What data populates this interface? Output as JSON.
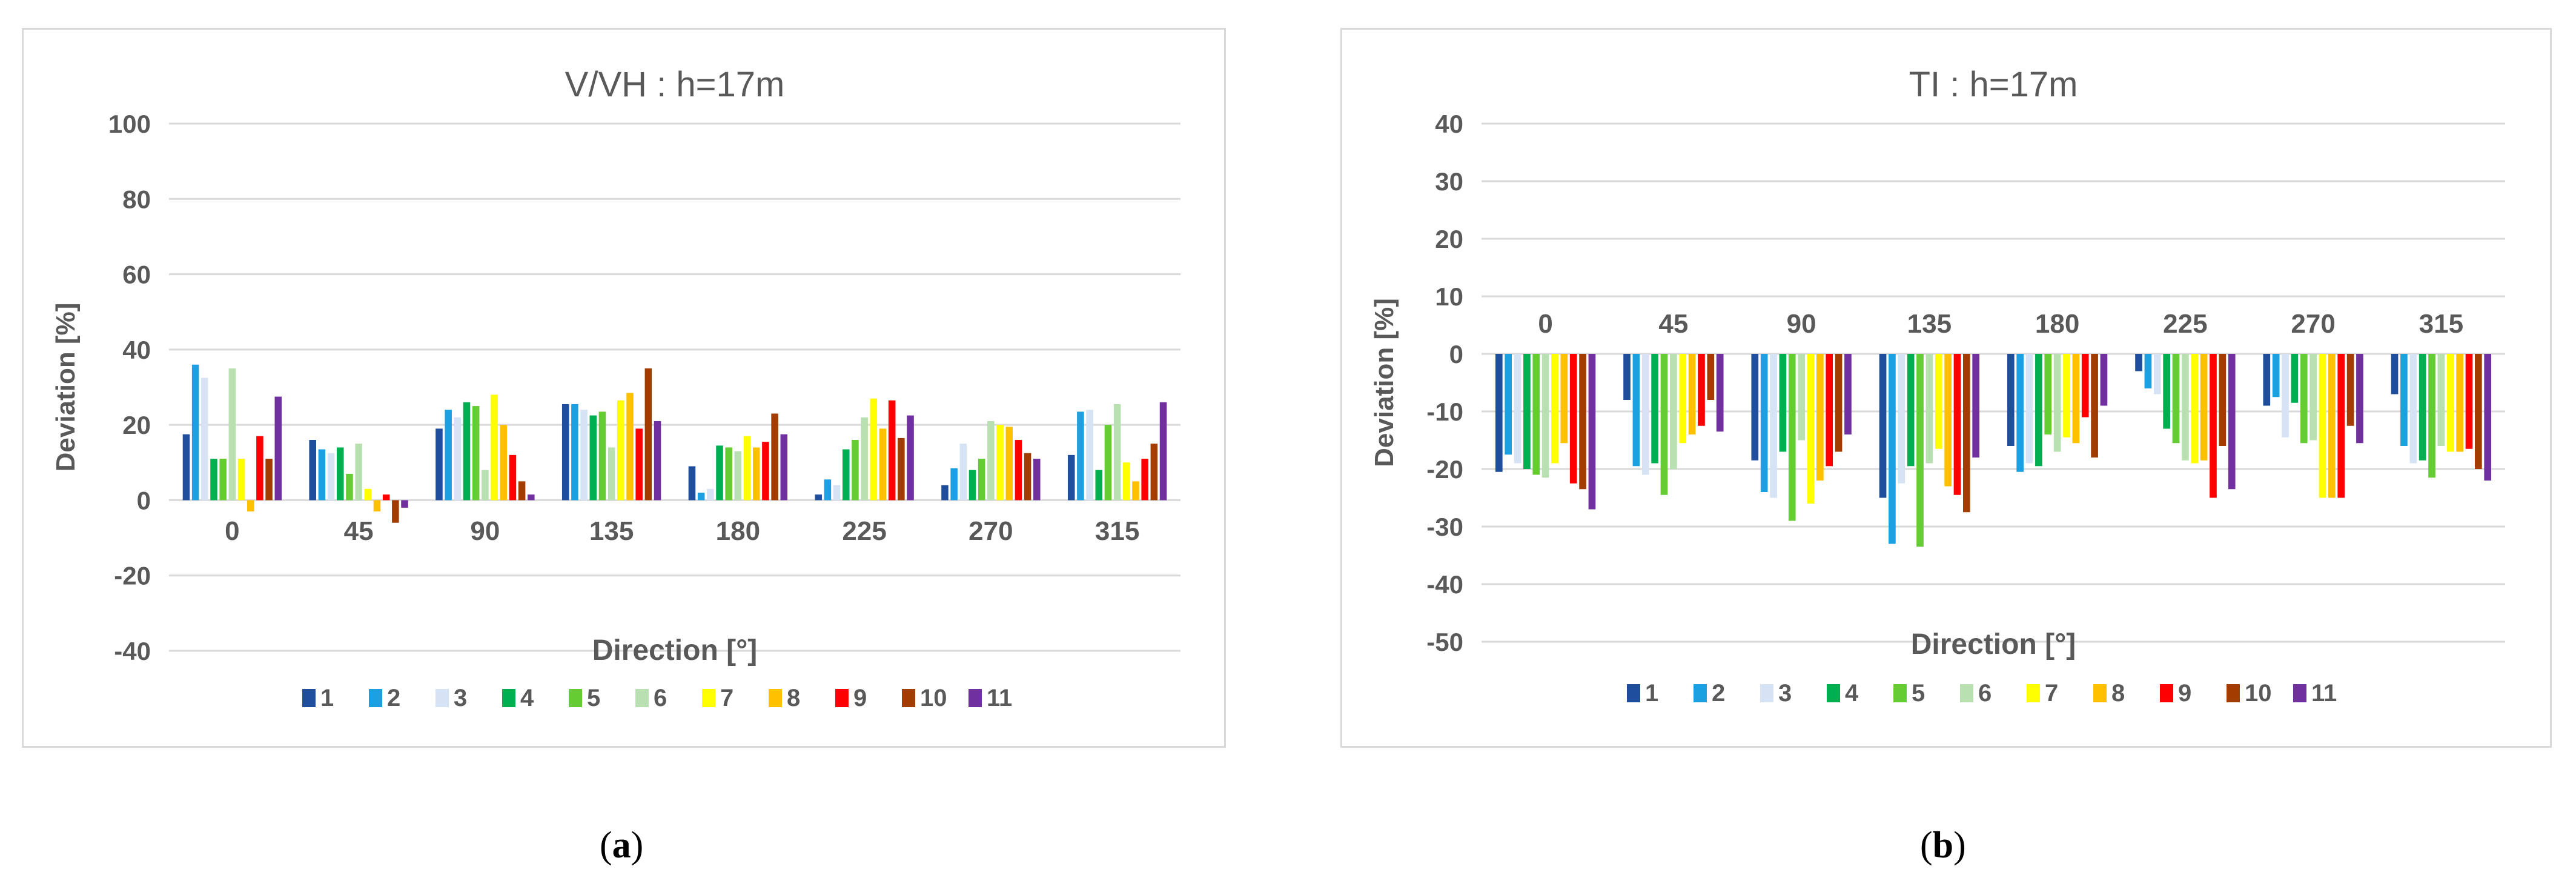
{
  "colors": [
    "#1f4e9c",
    "#1ba1e2",
    "#d6e3f5",
    "#00b050",
    "#66cc33",
    "#b8e0b0",
    "#ffff00",
    "#ffc000",
    "#ff0000",
    "#a23c00",
    "#7030a0"
  ],
  "captions": [
    {
      "open": "(",
      "letter": "a",
      "close": ")"
    },
    {
      "open": "(",
      "letter": "b",
      "close": ")"
    }
  ],
  "chart_data": [
    {
      "type": "bar",
      "title": "V/VH : h=17m",
      "xlabel": "Direction [°]",
      "ylabel": "Deviation [%]",
      "ylim": [
        -40,
        100
      ],
      "yticks": [
        -40,
        -20,
        0,
        20,
        40,
        60,
        80,
        100
      ],
      "categories": [
        "0",
        "45",
        "90",
        "135",
        "180",
        "225",
        "270",
        "315"
      ],
      "legend_position": "bottom",
      "grid": true,
      "series": [
        {
          "name": "1",
          "values": [
            17.5,
            16,
            19,
            25.5,
            9,
            1.5,
            4,
            12
          ]
        },
        {
          "name": "2",
          "values": [
            36,
            13.5,
            24,
            25.5,
            2,
            5.5,
            8.5,
            23.5
          ]
        },
        {
          "name": "3",
          "values": [
            32.5,
            12.5,
            22,
            24,
            3,
            4,
            15,
            24
          ]
        },
        {
          "name": "4",
          "values": [
            11,
            14,
            26,
            22.5,
            14.5,
            13.5,
            8,
            8
          ]
        },
        {
          "name": "5",
          "values": [
            11,
            7,
            25,
            23.5,
            14,
            16,
            11,
            20
          ]
        },
        {
          "name": "6",
          "values": [
            35,
            15,
            8,
            14,
            13,
            22,
            21,
            25.5
          ]
        },
        {
          "name": "7",
          "values": [
            11,
            3,
            28,
            26.5,
            17,
            27,
            20,
            10
          ]
        },
        {
          "name": "8",
          "values": [
            -3,
            -3,
            20,
            28.5,
            14,
            19,
            19.5,
            5
          ]
        },
        {
          "name": "9",
          "values": [
            17,
            1.5,
            12,
            19,
            15.5,
            26.5,
            16,
            11
          ]
        },
        {
          "name": "10",
          "values": [
            11,
            -6,
            5,
            35,
            23,
            16.5,
            12.5,
            15
          ]
        },
        {
          "name": "11",
          "values": [
            27.5,
            -2,
            1.5,
            21,
            17.5,
            22.5,
            11,
            26
          ]
        }
      ]
    },
    {
      "type": "bar",
      "title": "TI : h=17m",
      "xlabel": "Direction [°]",
      "ylabel": "Deviation [%]",
      "ylim": [
        -50,
        40
      ],
      "yticks": [
        -50,
        -40,
        -30,
        -20,
        -10,
        0,
        10,
        20,
        30,
        40
      ],
      "categories": [
        "0",
        "45",
        "90",
        "135",
        "180",
        "225",
        "270",
        "315"
      ],
      "legend_position": "bottom",
      "grid": true,
      "series": [
        {
          "name": "1",
          "values": [
            -20.5,
            -8,
            -18.5,
            -25,
            -16,
            -3,
            -9,
            -7
          ]
        },
        {
          "name": "2",
          "values": [
            -17.5,
            -19.5,
            -24,
            -33,
            -20.5,
            -6,
            -7.5,
            -16
          ]
        },
        {
          "name": "3",
          "values": [
            -19,
            -21,
            -25,
            -22.5,
            -19,
            -7,
            -14.5,
            -19
          ]
        },
        {
          "name": "4",
          "values": [
            -20,
            -19,
            -17,
            -19.5,
            -19.5,
            -13,
            -8.5,
            -18.5
          ]
        },
        {
          "name": "5",
          "values": [
            -21,
            -24.5,
            -29,
            -33.5,
            -14,
            -15.5,
            -15.5,
            -21.5
          ]
        },
        {
          "name": "6",
          "values": [
            -21.5,
            -20,
            -15,
            -19,
            -17,
            -18.5,
            -15,
            -16
          ]
        },
        {
          "name": "7",
          "values": [
            -19,
            -15.5,
            -26,
            -16.5,
            -14.5,
            -19,
            -25,
            -17
          ]
        },
        {
          "name": "8",
          "values": [
            -15.5,
            -14,
            -22,
            -23,
            -15.5,
            -18.5,
            -25,
            -17
          ]
        },
        {
          "name": "9",
          "values": [
            -22.5,
            -12.5,
            -19.5,
            -24.5,
            -11,
            -25,
            -25,
            -16.5
          ]
        },
        {
          "name": "10",
          "values": [
            -23.5,
            -8,
            -17,
            -27.5,
            -18,
            -16,
            -12.5,
            -20
          ]
        },
        {
          "name": "11",
          "values": [
            -27,
            -13.5,
            -14,
            -18,
            -9,
            -23.5,
            -15.5,
            -22
          ]
        }
      ]
    }
  ]
}
